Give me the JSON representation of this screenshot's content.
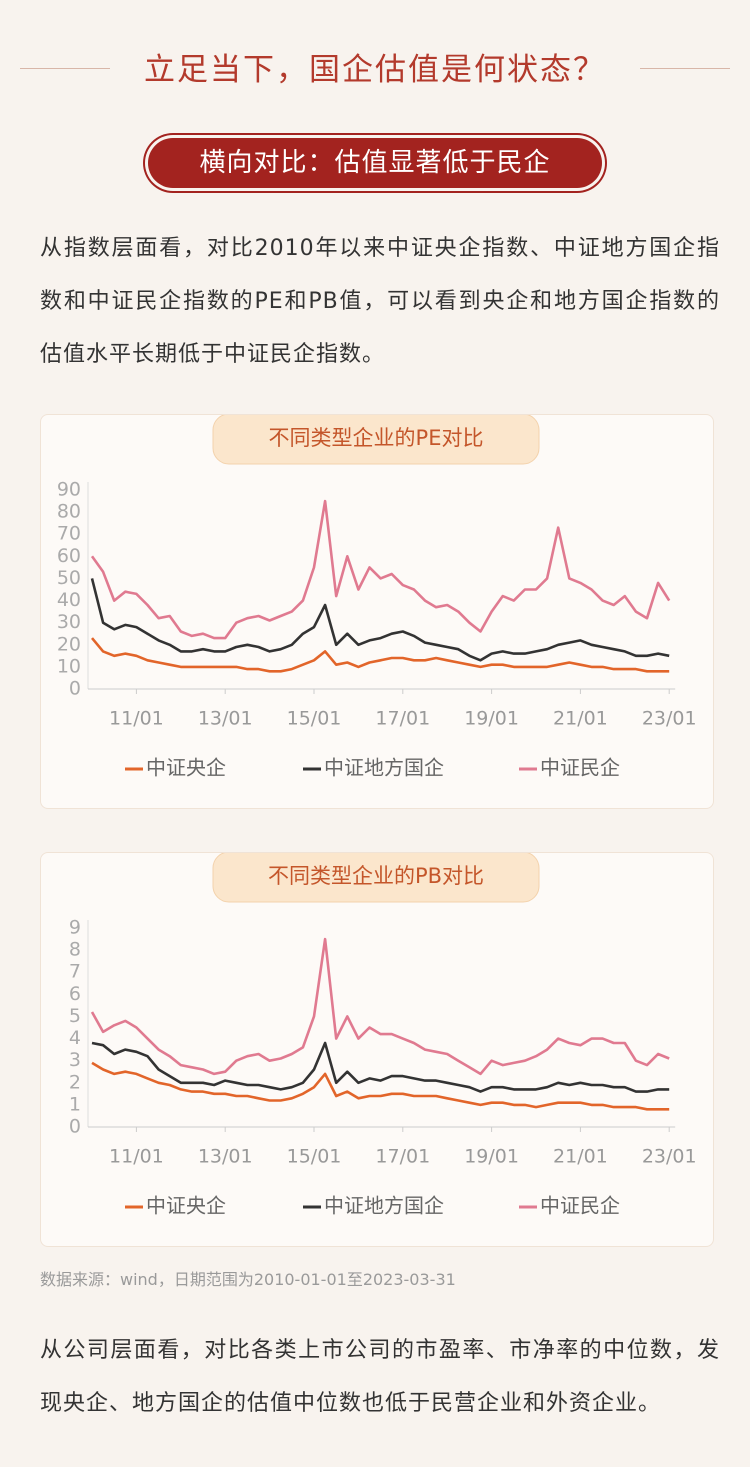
{
  "header": {
    "title": "立足当下，国企估值是何状态？",
    "banner": "横向对比：估值显著低于民企"
  },
  "paragraphs": [
    "从指数层面看，对比2010年以来中证央企指数、中证地方国企指数和中证民企指数的PE和PB值，可以看到央企和地方国企指数的估值水平长期低于中证民企指数。",
    "从公司层面看，对比各类上市公司的市盈率、市净率的中位数，发现央企、地方国企的估值中位数也低于民营企业和外资企业。"
  ],
  "source": "数据来源：wind，日期范围为2010-01-01至2023-03-31",
  "chart_data": [
    {
      "type": "line",
      "title": "不同类型企业的PE对比",
      "x": [
        "10/01",
        "10/04",
        "10/07",
        "10/10",
        "11/01",
        "11/04",
        "11/07",
        "11/10",
        "12/01",
        "12/04",
        "12/07",
        "12/10",
        "13/01",
        "13/04",
        "13/07",
        "13/10",
        "14/01",
        "14/04",
        "14/07",
        "14/10",
        "15/01",
        "15/04",
        "15/07",
        "15/10",
        "16/01",
        "16/04",
        "16/07",
        "16/10",
        "17/01",
        "17/04",
        "17/07",
        "17/10",
        "18/01",
        "18/04",
        "18/07",
        "18/10",
        "19/01",
        "19/04",
        "19/07",
        "19/10",
        "20/01",
        "20/04",
        "20/07",
        "20/10",
        "21/01",
        "21/04",
        "21/07",
        "21/10",
        "22/01",
        "22/04",
        "22/07",
        "22/10",
        "23/01"
      ],
      "xticks": [
        "11/01",
        "13/01",
        "15/01",
        "17/01",
        "19/01",
        "21/01",
        "23/01"
      ],
      "ylim": [
        0,
        90
      ],
      "yticks": [
        0,
        10,
        20,
        30,
        40,
        50,
        60,
        70,
        80,
        90
      ],
      "series": [
        {
          "name": "中证央企",
          "color": "#e2652a",
          "values": [
            23,
            17,
            15,
            16,
            15,
            13,
            12,
            11,
            10,
            10,
            10,
            10,
            10,
            10,
            9,
            9,
            8,
            8,
            9,
            11,
            13,
            17,
            11,
            12,
            10,
            12,
            13,
            14,
            14,
            13,
            13,
            14,
            13,
            12,
            11,
            10,
            11,
            11,
            10,
            10,
            10,
            10,
            11,
            12,
            11,
            10,
            10,
            9,
            9,
            9,
            8,
            8,
            8
          ]
        },
        {
          "name": "中证地方国企",
          "color": "#333333",
          "values": [
            50,
            30,
            27,
            29,
            28,
            25,
            22,
            20,
            17,
            17,
            18,
            17,
            17,
            19,
            20,
            19,
            17,
            18,
            20,
            25,
            28,
            38,
            20,
            25,
            20,
            22,
            23,
            25,
            26,
            24,
            21,
            20,
            19,
            18,
            15,
            13,
            16,
            17,
            16,
            16,
            17,
            18,
            20,
            21,
            22,
            20,
            19,
            18,
            17,
            15,
            15,
            16,
            15
          ]
        },
        {
          "name": "中证民企",
          "color": "#e07a90",
          "values": [
            60,
            53,
            40,
            44,
            43,
            38,
            32,
            33,
            26,
            24,
            25,
            23,
            23,
            30,
            32,
            33,
            31,
            33,
            35,
            40,
            55,
            85,
            42,
            60,
            45,
            55,
            50,
            52,
            47,
            45,
            40,
            37,
            38,
            35,
            30,
            26,
            35,
            42,
            40,
            45,
            45,
            50,
            73,
            50,
            48,
            45,
            40,
            38,
            42,
            35,
            32,
            48,
            40
          ]
        }
      ]
    },
    {
      "type": "line",
      "title": "不同类型企业的PB对比",
      "x": [
        "10/01",
        "10/04",
        "10/07",
        "10/10",
        "11/01",
        "11/04",
        "11/07",
        "11/10",
        "12/01",
        "12/04",
        "12/07",
        "12/10",
        "13/01",
        "13/04",
        "13/07",
        "13/10",
        "14/01",
        "14/04",
        "14/07",
        "14/10",
        "15/01",
        "15/04",
        "15/07",
        "15/10",
        "16/01",
        "16/04",
        "16/07",
        "16/10",
        "17/01",
        "17/04",
        "17/07",
        "17/10",
        "18/01",
        "18/04",
        "18/07",
        "18/10",
        "19/01",
        "19/04",
        "19/07",
        "19/10",
        "20/01",
        "20/04",
        "20/07",
        "20/10",
        "21/01",
        "21/04",
        "21/07",
        "21/10",
        "22/01",
        "22/04",
        "22/07",
        "22/10",
        "23/01"
      ],
      "xticks": [
        "11/01",
        "13/01",
        "15/01",
        "17/01",
        "19/01",
        "21/01",
        "23/01"
      ],
      "ylim": [
        0,
        9
      ],
      "yticks": [
        0,
        1,
        2,
        3,
        4,
        5,
        6,
        7,
        8,
        9
      ],
      "series": [
        {
          "name": "中证央企",
          "color": "#e2652a",
          "values": [
            2.9,
            2.6,
            2.4,
            2.5,
            2.4,
            2.2,
            2.0,
            1.9,
            1.7,
            1.6,
            1.6,
            1.5,
            1.5,
            1.4,
            1.4,
            1.3,
            1.2,
            1.2,
            1.3,
            1.5,
            1.8,
            2.4,
            1.4,
            1.6,
            1.3,
            1.4,
            1.4,
            1.5,
            1.5,
            1.4,
            1.4,
            1.4,
            1.3,
            1.2,
            1.1,
            1.0,
            1.1,
            1.1,
            1.0,
            1.0,
            0.9,
            1.0,
            1.1,
            1.1,
            1.1,
            1.0,
            1.0,
            0.9,
            0.9,
            0.9,
            0.8,
            0.8,
            0.8
          ]
        },
        {
          "name": "中证地方国企",
          "color": "#333333",
          "values": [
            3.8,
            3.7,
            3.3,
            3.5,
            3.4,
            3.2,
            2.6,
            2.3,
            2.0,
            2.0,
            2.0,
            1.9,
            2.1,
            2.0,
            1.9,
            1.9,
            1.8,
            1.7,
            1.8,
            2.0,
            2.6,
            3.8,
            2.0,
            2.5,
            2.0,
            2.2,
            2.1,
            2.3,
            2.3,
            2.2,
            2.1,
            2.1,
            2.0,
            1.9,
            1.8,
            1.6,
            1.8,
            1.8,
            1.7,
            1.7,
            1.7,
            1.8,
            2.0,
            1.9,
            2.0,
            1.9,
            1.9,
            1.8,
            1.8,
            1.6,
            1.6,
            1.7,
            1.7
          ]
        },
        {
          "name": "中证民企",
          "color": "#e07a90",
          "values": [
            5.2,
            4.3,
            4.6,
            4.8,
            4.5,
            4,
            3.5,
            3.2,
            2.8,
            2.7,
            2.6,
            2.4,
            2.5,
            3.0,
            3.2,
            3.3,
            3.0,
            3.1,
            3.3,
            3.6,
            5.0,
            8.5,
            4.0,
            5.0,
            4.0,
            4.5,
            4.2,
            4.2,
            4.0,
            3.8,
            3.5,
            3.4,
            3.3,
            3.0,
            2.7,
            2.4,
            3.0,
            2.8,
            2.9,
            3.0,
            3.2,
            3.5,
            4.0,
            3.8,
            3.7,
            4.0,
            4.0,
            3.8,
            3.8,
            3.0,
            2.8,
            3.3,
            3.1
          ]
        }
      ]
    }
  ]
}
